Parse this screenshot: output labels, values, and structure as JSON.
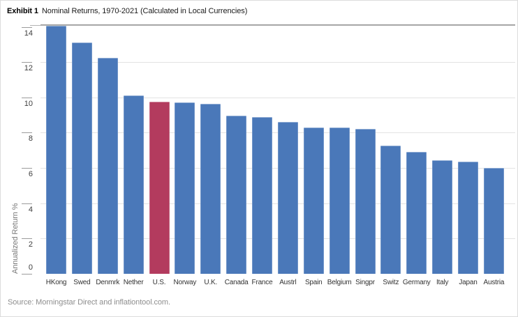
{
  "title": {
    "exhibit_label": "Exhibit 1",
    "text": "Nominal Returns, 1970-2021 (Calculated in Local Currencies)"
  },
  "source": {
    "text": "Source: Morningstar Direct and inflationtool.com."
  },
  "chart_data": {
    "type": "bar",
    "title": "Nominal Returns, 1970-2021 (Calculated in Local Currencies)",
    "xlabel": "",
    "ylabel": "Annualized Return %",
    "ylim": [
      0,
      14.1
    ],
    "yticks": [
      0,
      2,
      4,
      6,
      8,
      10,
      12,
      14
    ],
    "grid": true,
    "legend": "none",
    "categories": [
      "HKong",
      "Swed",
      "Denmrk",
      "Nether",
      "U.S.",
      "Norway",
      "U.K.",
      "Canada",
      "France",
      "Austrl",
      "Spain",
      "Belgium",
      "Singpr",
      "Switz",
      "Germany",
      "Italy",
      "Japan",
      "Austria"
    ],
    "values": [
      14.05,
      13.1,
      12.25,
      10.1,
      9.75,
      9.7,
      9.65,
      8.95,
      8.9,
      8.6,
      8.3,
      8.3,
      8.2,
      7.25,
      6.9,
      6.45,
      6.35,
      6.0
    ],
    "highlighted_category": "U.S.",
    "colors": {
      "bar": "#4a78b9",
      "highlight": "#b33b5e",
      "gridline": "#e3e3e3",
      "axis_line": "#9a9a9a",
      "baseline": "#b3b3b3",
      "tick_label": "#3d3d3d",
      "category_label": "#333333",
      "axis_title": "#787878",
      "source_text": "#8e8e8e"
    }
  }
}
